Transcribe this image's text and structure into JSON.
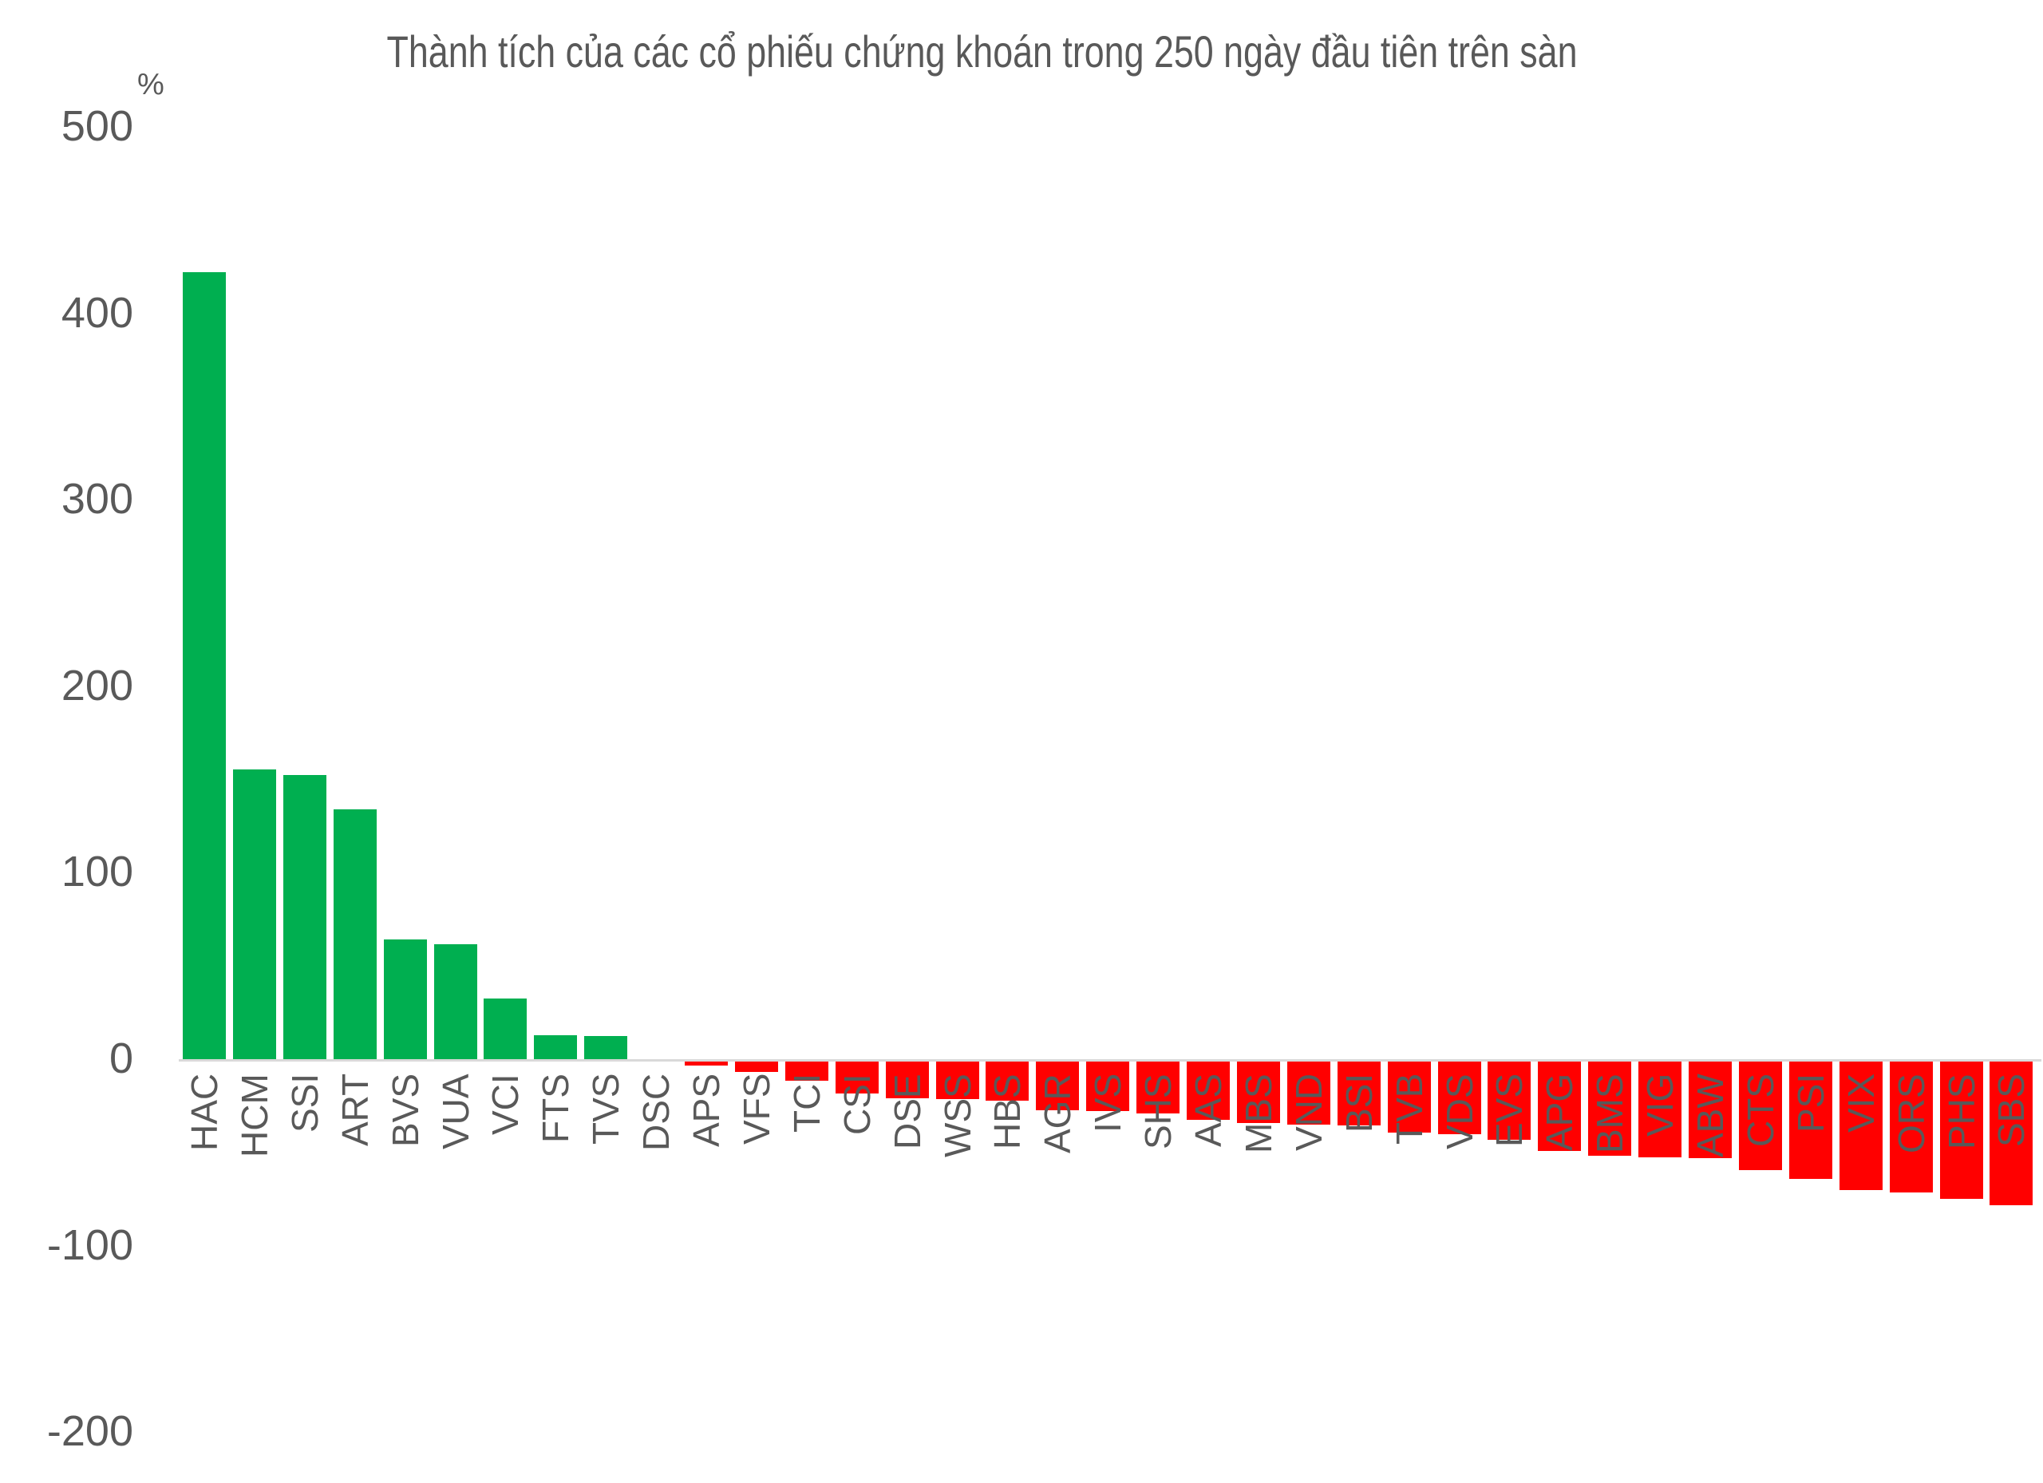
{
  "chart_data": {
    "type": "bar",
    "title": "Thành tích của các cổ phiếu chứng khoán trong 250 ngày đầu tiên trên sàn",
    "xlabel": "",
    "ylabel": "%",
    "ylim": [
      -200,
      500
    ],
    "yticks": [
      "500",
      "400",
      "300",
      "200",
      "100",
      "0",
      "-100",
      "-200"
    ],
    "grid": false,
    "legend": null,
    "colors": {
      "positive": "#00AF50",
      "negative": "#FF0000",
      "axis": "#D9D9D9",
      "text": "#595959"
    },
    "categories": [
      "HAC",
      "HCM",
      "SSI",
      "ART",
      "BVS",
      "VUA",
      "VCI",
      "FTS",
      "TVS",
      "DSC",
      "APS",
      "VFS",
      "TCI",
      "CSI",
      "DSE",
      "WSS",
      "HBS",
      "AGR",
      "IVS",
      "SHS",
      "AAS",
      "MBS",
      "VND",
      "BSI",
      "TVB",
      "VDS",
      "EVS",
      "APG",
      "BMS",
      "VIG",
      "ABW",
      "CTS",
      "PSI",
      "VIX",
      "ORS",
      "PHS",
      "SBS"
    ],
    "values": [
      422.5,
      155.8,
      152.8,
      134.4,
      64.6,
      62.1,
      33.0,
      13.3,
      12.8,
      0,
      -2.3,
      -5.7,
      -10.3,
      -17.3,
      -19.8,
      -20.3,
      -21.1,
      -26.1,
      -26.7,
      -28.0,
      -31.4,
      -33.1,
      -34.0,
      -34.4,
      -38.1,
      -39.1,
      -42.1,
      -48.1,
      -50.5,
      -51.5,
      -51.9,
      -58.2,
      -63.1,
      -69.1,
      -70.2,
      -73.8,
      -77.2
    ]
  }
}
